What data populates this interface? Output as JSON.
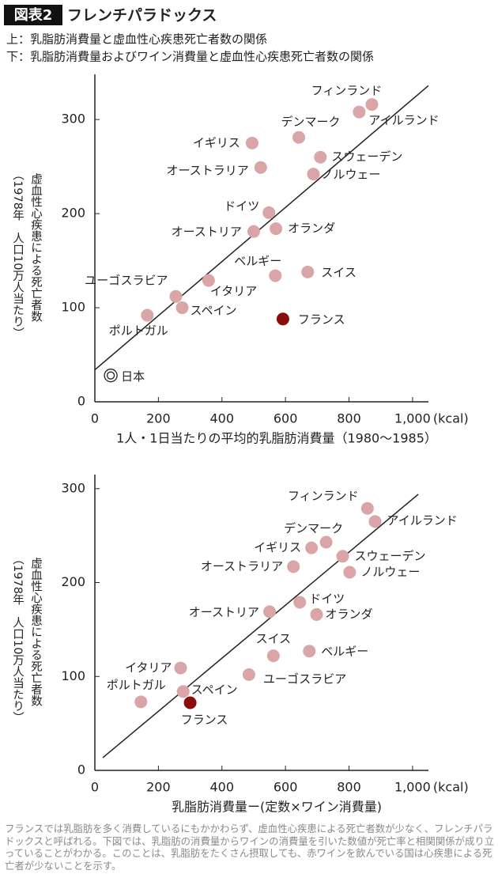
{
  "header": {
    "badge": "図表2",
    "title": "フレンチパラドックス",
    "lines": [
      "上：乳脂肪消費量と虚血性心疾患死亡者数の関係",
      "下：乳脂肪消費量およびワイン消費量と虚血性心疾患死亡者数の関係"
    ]
  },
  "chart_data": [
    {
      "type": "scatter",
      "x_label": "1人・1日当たりの平均的乳脂肪消費量（1980〜1985）",
      "x_unit": "(kcal)",
      "y_label": [
        "（1978年　人口10万人当たり）",
        "虚血性心疾患による死亡者数"
      ],
      "xlim": [
        0,
        1050
      ],
      "xticks": [
        0,
        200,
        400,
        600,
        800,
        {
          "value": 1000,
          "label": "1,000"
        }
      ],
      "ylim": [
        0,
        348
      ],
      "yticks": [
        0,
        100,
        200,
        300
      ],
      "color": "#d9a5a7",
      "points": [
        {
          "label": "フィンランド",
          "x": 872,
          "y": 316
        },
        {
          "label": "アイルランド",
          "x": 832,
          "y": 308
        },
        {
          "label": "デンマーク",
          "x": 642,
          "y": 281
        },
        {
          "label": "イギリス",
          "x": 495,
          "y": 275
        },
        {
          "label": "スウェーデン",
          "x": 710,
          "y": 260
        },
        {
          "label": "オーストラリア",
          "x": 522,
          "y": 249
        },
        {
          "label": "ノルウェー",
          "x": 688,
          "y": 242
        },
        {
          "label": "ドイツ",
          "x": 548,
          "y": 201
        },
        {
          "label": "オーストリア",
          "x": 500,
          "y": 181
        },
        {
          "label": "オランダ",
          "x": 570,
          "y": 184
        },
        {
          "label": "ベルギー",
          "x": 568,
          "y": 134
        },
        {
          "label": "スイス",
          "x": 670,
          "y": 138
        },
        {
          "label": "ユーゴスラビア",
          "x": 255,
          "y": 112
        },
        {
          "label": "イタリア",
          "x": 358,
          "y": 129
        },
        {
          "label": "スペイン",
          "x": 275,
          "y": 100
        },
        {
          "label": "ポルトガル",
          "x": 165,
          "y": 92
        },
        {
          "label": "フランス",
          "x": 592,
          "y": 88,
          "color": "#8b0c0c"
        },
        {
          "label": "日本",
          "x": 50,
          "y": 28,
          "marker": "double-circle"
        }
      ],
      "fit_line": {
        "x": [
          0,
          1050
        ],
        "y": [
          34,
          336
        ]
      }
    },
    {
      "type": "scatter",
      "x_label": "乳脂肪消費量ー(定数×ワイン消費量)",
      "x_unit": "(kcal)",
      "y_label": [
        "（1978年　人口10万人当たり）",
        "虚血性心疾患による死亡者数"
      ],
      "xlim": [
        0,
        1050
      ],
      "xticks": [
        0,
        200,
        400,
        600,
        800,
        {
          "value": 1000,
          "label": "1,000"
        }
      ],
      "ylim": [
        0,
        315
      ],
      "yticks": [
        0,
        100,
        200,
        300
      ],
      "color": "#d9a5a7",
      "points": [
        {
          "label": "フィンランド",
          "x": 858,
          "y": 279
        },
        {
          "label": "アイルランド",
          "x": 882,
          "y": 265
        },
        {
          "label": "デンマーク",
          "x": 728,
          "y": 243
        },
        {
          "label": "イギリス",
          "x": 682,
          "y": 237
        },
        {
          "label": "スウェーデン",
          "x": 780,
          "y": 228
        },
        {
          "label": "オーストラリア",
          "x": 625,
          "y": 217
        },
        {
          "label": "ノルウェー",
          "x": 802,
          "y": 211
        },
        {
          "label": "ドイツ",
          "x": 645,
          "y": 179
        },
        {
          "label": "オーストリア",
          "x": 550,
          "y": 169
        },
        {
          "label": "オランダ",
          "x": 698,
          "y": 166
        },
        {
          "label": "スイス",
          "x": 562,
          "y": 122
        },
        {
          "label": "ベルギー",
          "x": 675,
          "y": 127
        },
        {
          "label": "ユーゴスラビア",
          "x": 485,
          "y": 102
        },
        {
          "label": "イタリア",
          "x": 270,
          "y": 109
        },
        {
          "label": "スペイン",
          "x": 278,
          "y": 84
        },
        {
          "label": "ポルトガル",
          "x": 145,
          "y": 73
        },
        {
          "label": "フランス",
          "x": 300,
          "y": 72,
          "color": "#8b0c0c"
        }
      ],
      "fit_line": {
        "x": [
          25,
          1018
        ],
        "y": [
          13.5,
          294
        ]
      }
    }
  ],
  "caption": "フランスでは乳脂肪を多く消費しているにもかかわらず、虚血性心疾患による死亡者数が少なく、フレンチパラドックスと呼ばれる。下図では、乳脂肪の消費量からワインの消費量を引いた数値が死亡率と相関関係が成り立っていることがわかる。このことは、乳脂肪をたくさん摂取しても、赤ワインを飲んでいる国は心疾患による死亡者が少ないことを示す。"
}
